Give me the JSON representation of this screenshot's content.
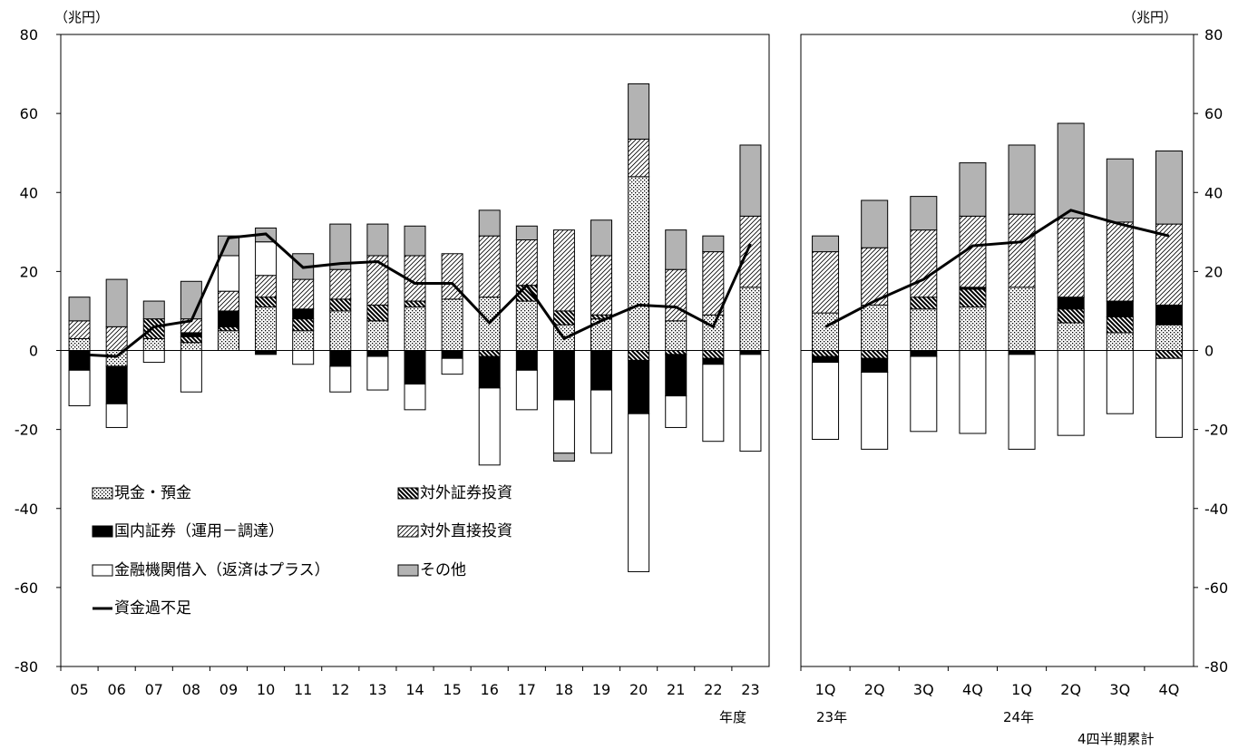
{
  "chart_data": [
    {
      "type": "bar",
      "stacked": true,
      "unit_label": "（兆円）",
      "xlabel": "年度",
      "ylim": [
        -80,
        80
      ],
      "yticks": [
        "80",
        "60",
        "40",
        "20",
        "0",
        "-20",
        "-40",
        "-60",
        "-80"
      ],
      "categories": [
        "05",
        "06",
        "07",
        "08",
        "09",
        "10",
        "11",
        "12",
        "13",
        "14",
        "15",
        "16",
        "17",
        "18",
        "19",
        "20",
        "21",
        "22",
        "23"
      ],
      "series": [
        {
          "name": "現金・預金",
          "pattern": "dots",
          "values": [
            3,
            -4,
            3,
            2,
            5,
            11,
            5,
            10,
            7.5,
            11,
            13,
            13.5,
            12.5,
            6.5,
            8,
            44,
            7.5,
            9,
            16
          ]
        },
        {
          "name": "対外証券投資",
          "pattern": "heavy-hatch",
          "values": [
            0,
            0,
            5,
            1.5,
            1,
            2.5,
            3,
            3,
            4,
            1.5,
            0,
            -1.5,
            4,
            3.5,
            1,
            -2.5,
            -1,
            -2,
            0
          ]
        },
        {
          "name": "国内証券（運用－調達）",
          "pattern": "black",
          "values": [
            -5,
            -9.5,
            0,
            1,
            4,
            -1,
            2.5,
            -4,
            -1.5,
            -8.5,
            -2,
            -8,
            -5,
            -12.5,
            -10,
            -13.5,
            -10.5,
            -1.5,
            -1
          ]
        },
        {
          "name": "対外直接投資",
          "pattern": "light-hatch",
          "values": [
            4.5,
            6,
            0,
            3.5,
            5,
            5.5,
            7.5,
            7.5,
            12.5,
            11.5,
            11.5,
            15.5,
            11.5,
            20.5,
            15,
            9.5,
            13,
            16,
            18
          ]
        },
        {
          "name": "金融機関借入（返済はプラス）",
          "pattern": "white",
          "values": [
            -9,
            -6,
            -3,
            -10.5,
            9,
            8.5,
            -3.5,
            -6.5,
            -8.5,
            -6.5,
            -4,
            -19.5,
            -10,
            -13.5,
            -16,
            -40,
            -8,
            -19.5,
            -24.5
          ]
        },
        {
          "name": "その他",
          "pattern": "gray",
          "values": [
            6,
            12,
            4.5,
            9.5,
            5,
            3.5,
            6.5,
            11.5,
            8,
            7.5,
            0,
            6.5,
            3.5,
            -2,
            9,
            14,
            10,
            4,
            18
          ]
        }
      ],
      "line": {
        "name": "資金過不足",
        "values": [
          -1,
          -1.5,
          6,
          7.5,
          28.5,
          29.5,
          21,
          22,
          22.5,
          17,
          17,
          7,
          16.5,
          3,
          7.5,
          11.5,
          11,
          6,
          27
        ]
      }
    },
    {
      "type": "bar",
      "stacked": true,
      "unit_label": "（兆円）",
      "ylim": [
        -80,
        80
      ],
      "yticks": [
        "80",
        "60",
        "40",
        "20",
        "0",
        "-20",
        "-40",
        "-60",
        "-80"
      ],
      "categories": [
        "1Q",
        "2Q",
        "3Q",
        "4Q",
        "1Q",
        "2Q",
        "3Q",
        "4Q"
      ],
      "year_labels": [
        "23年",
        "24年"
      ],
      "footnote": "4四半期累計",
      "series": [
        {
          "name": "現金・預金",
          "pattern": "dots",
          "values": [
            9.5,
            11.5,
            10.5,
            11,
            16,
            7,
            4.5,
            6.5
          ]
        },
        {
          "name": "対外証券投資",
          "pattern": "heavy-hatch",
          "values": [
            -1.5,
            -2,
            3,
            4.5,
            0,
            3.5,
            4,
            -2
          ]
        },
        {
          "name": "国内証券（運用－調達）",
          "pattern": "black",
          "values": [
            -1.5,
            -3.5,
            -1.5,
            0.5,
            -1,
            3,
            4,
            5
          ]
        },
        {
          "name": "対外直接投資",
          "pattern": "light-hatch",
          "values": [
            15.5,
            14.5,
            17,
            18,
            18.5,
            20,
            20,
            20.5
          ]
        },
        {
          "name": "金融機関借入（返済はプラス）",
          "pattern": "white",
          "values": [
            -19.5,
            -19.5,
            -19,
            -21,
            -24,
            -21.5,
            -16,
            -20
          ]
        },
        {
          "name": "その他",
          "pattern": "gray",
          "values": [
            4,
            12,
            8.5,
            13.5,
            17.5,
            24,
            16,
            18.5
          ]
        }
      ],
      "line": {
        "name": "資金過不足",
        "values": [
          6,
          12.5,
          18,
          26.5,
          27.5,
          35.5,
          32,
          29
        ]
      }
    }
  ],
  "legend": [
    {
      "label": "現金・預金",
      "pattern": "dots"
    },
    {
      "label": "対外証券投資",
      "pattern": "heavy-hatch"
    },
    {
      "label": "国内証券（運用－調達）",
      "pattern": "black"
    },
    {
      "label": "対外直接投資",
      "pattern": "light-hatch"
    },
    {
      "label": "金融機関借入（返済はプラス）",
      "pattern": "white"
    },
    {
      "label": "その他",
      "pattern": "gray"
    },
    {
      "label": "資金過不足",
      "pattern": "line"
    }
  ],
  "colors": {
    "gray": "#b3b3b3",
    "black": "#000000",
    "white": "#ffffff",
    "line": "#000000"
  }
}
